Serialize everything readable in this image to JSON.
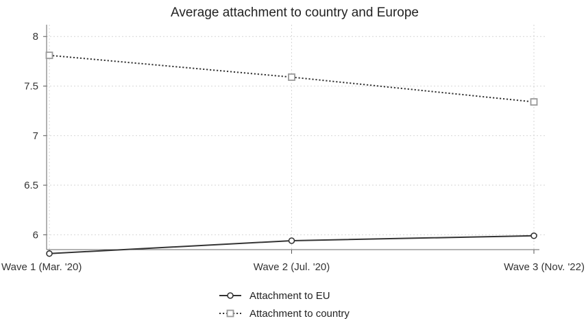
{
  "chart_data": {
    "type": "line",
    "title": "Average attachment to country and Europe",
    "xlabel": "",
    "ylabel": "",
    "categories": [
      "Wave 1 (Mar. '20)",
      "Wave 2 (Jul. '20)",
      "Wave 3 (Nov. '22)"
    ],
    "ylim": [
      5.85,
      8.05
    ],
    "yticks": [
      6,
      6.5,
      7,
      7.5,
      8
    ],
    "ytick_labels": [
      "6",
      "6.5",
      "7",
      "7.5",
      "8"
    ],
    "grid": true,
    "legend_position": "bottom-center",
    "series": [
      {
        "name": "Attachment to EU",
        "values": [
          5.81,
          5.94,
          5.99
        ],
        "color": "#333333",
        "line_style": "solid",
        "marker": "circle"
      },
      {
        "name": "Attachment to country",
        "values": [
          7.81,
          7.59,
          7.34
        ],
        "color": "#333333",
        "marker_color": "#999999",
        "line_style": "dotted",
        "marker": "square"
      }
    ]
  }
}
